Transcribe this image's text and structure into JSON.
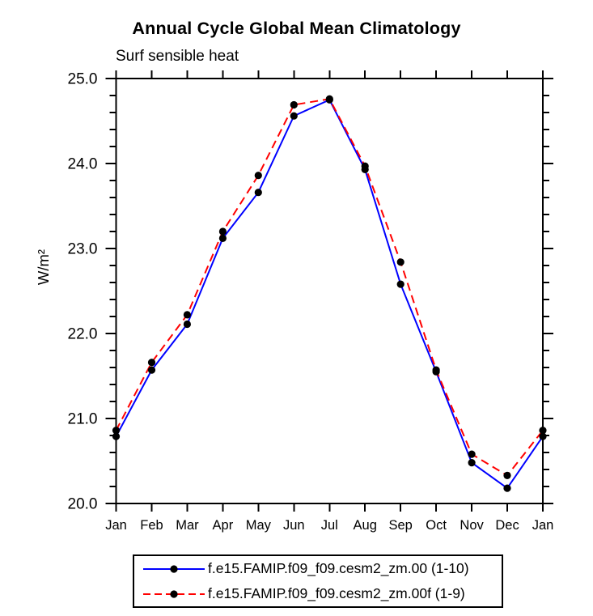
{
  "title": "Annual Cycle Global Mean Climatology",
  "subtitle": "Surf sensible heat",
  "chart_data": {
    "type": "line",
    "title": "Annual Cycle Global Mean Climatology",
    "subtitle": "Surf sensible heat",
    "xlabel": "",
    "ylabel": "W/m²",
    "categories": [
      "Jan",
      "Feb",
      "Mar",
      "Apr",
      "May",
      "Jun",
      "Jul",
      "Aug",
      "Sep",
      "Oct",
      "Nov",
      "Dec",
      "Jan"
    ],
    "series": [
      {
        "name": "f.e15.FAMIP.f09_f09.cesm2_zm.00 (1-10)",
        "color": "#0000ff",
        "line_style": "solid",
        "marker": "filled-circle",
        "marker_color": "#000000",
        "values": [
          20.79,
          21.57,
          22.11,
          23.12,
          23.66,
          24.56,
          24.75,
          23.93,
          22.58,
          21.55,
          20.48,
          20.18,
          20.79
        ]
      },
      {
        "name": "f.e15.FAMIP.f09_f09.cesm2_zm.00f (1-9)",
        "color": "#ff0000",
        "line_style": "dashed",
        "marker": "filled-circle",
        "marker_color": "#000000",
        "values": [
          20.86,
          21.66,
          22.22,
          23.2,
          23.86,
          24.69,
          24.76,
          23.97,
          22.84,
          21.57,
          20.58,
          20.33,
          20.86
        ]
      }
    ],
    "ylim": [
      20.0,
      25.0
    ],
    "y_major_step": 1.0,
    "y_minor_step": 0.2,
    "y_tick_labels": [
      "20.0",
      "21.0",
      "22.0",
      "23.0",
      "24.0",
      "25.0"
    ],
    "grid": "off",
    "legend_position": "bottom"
  }
}
